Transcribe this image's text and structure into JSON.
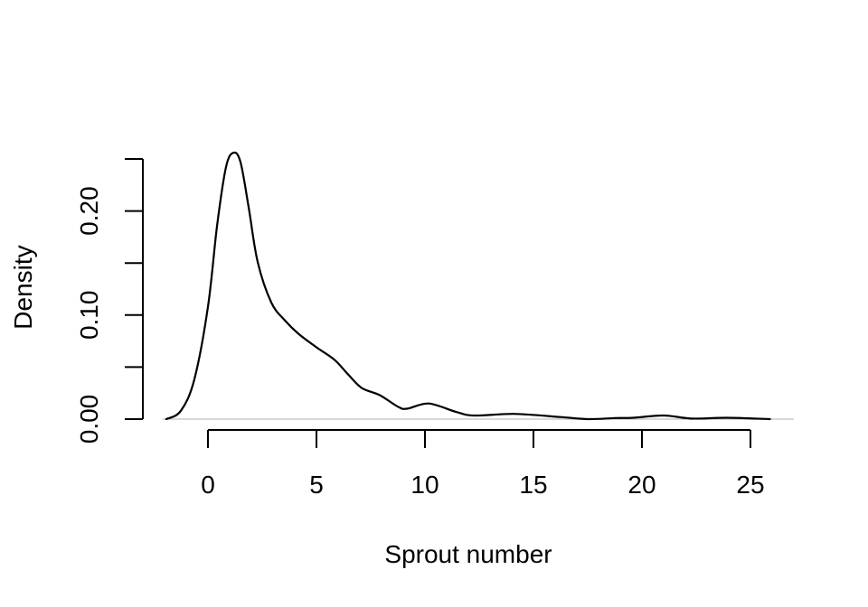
{
  "chart_data": {
    "type": "line",
    "subtype": "density",
    "title": "",
    "xlabel": "Sprout number",
    "ylabel": "Density",
    "xlim": [
      -2,
      26
    ],
    "ylim": [
      0,
      0.25
    ],
    "x_ticks": [
      0,
      5,
      10,
      15,
      20,
      25
    ],
    "x_tick_labels": [
      "0",
      "5",
      "10",
      "15",
      "20",
      "25"
    ],
    "y_ticks": [
      0.0,
      0.05,
      0.1,
      0.15,
      0.2,
      0.25
    ],
    "y_tick_labels": [
      "0.00",
      "",
      "0.10",
      "",
      "0.20",
      ""
    ],
    "grid": false,
    "legend": null,
    "zero_line": {
      "y": 0,
      "color": "#cccccc"
    },
    "line_color": "#000000",
    "series": [
      {
        "name": "density",
        "x": [
          -1.92,
          -1.25,
          -0.63,
          0.0,
          0.42,
          0.83,
          1.17,
          1.5,
          1.88,
          2.29,
          2.92,
          3.54,
          4.17,
          5.0,
          5.83,
          6.46,
          7.08,
          7.92,
          8.75,
          9.17,
          10.17,
          11.42,
          12.25,
          14.1,
          16.25,
          17.5,
          18.75,
          19.6,
          21.0,
          22.3,
          23.95,
          25.9
        ],
        "values": [
          0.0,
          0.008,
          0.038,
          0.108,
          0.186,
          0.242,
          0.256,
          0.247,
          0.203,
          0.151,
          0.112,
          0.095,
          0.082,
          0.069,
          0.057,
          0.043,
          0.03,
          0.023,
          0.012,
          0.01,
          0.015,
          0.007,
          0.0035,
          0.005,
          0.002,
          0.0,
          0.001,
          0.0013,
          0.0035,
          0.0005,
          0.0013,
          0.0
        ]
      }
    ]
  }
}
